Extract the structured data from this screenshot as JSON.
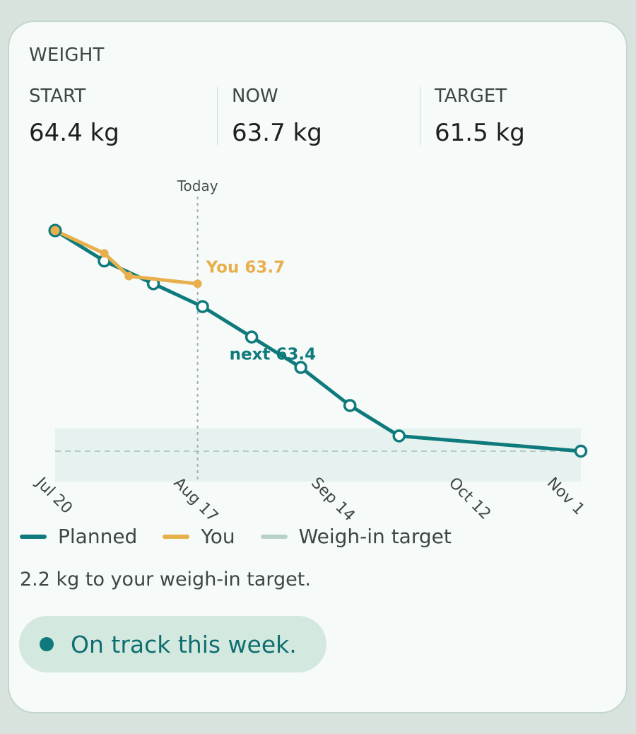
{
  "header": {
    "title": "WEIGHT"
  },
  "stats": [
    {
      "label": "START",
      "value": "64.4 kg"
    },
    {
      "label": "NOW",
      "value": "63.7 kg"
    },
    {
      "label": "TARGET",
      "value": "61.5 kg"
    }
  ],
  "legend": [
    {
      "label": "Planned",
      "color": "#0f7a7c"
    },
    {
      "label": "You",
      "color": "#e8b04d"
    },
    {
      "label": "Weigh-in target",
      "color": "#b9d2c8"
    }
  ],
  "summary": "2.2 kg to your weigh-in target.",
  "status": {
    "text": "On track this week."
  },
  "chart_data": {
    "type": "line",
    "x_ticks": [
      {
        "date": "2024-07-20",
        "label": "Jul 20"
      },
      {
        "date": "2024-08-17",
        "label": "Aug 17"
      },
      {
        "date": "2024-09-14",
        "label": "Sep 14"
      },
      {
        "date": "2024-10-12",
        "label": "Oct 12"
      },
      {
        "date": "2024-11-01",
        "label": "Nov 1"
      }
    ],
    "xlim": [
      "2024-07-20",
      "2024-11-04"
    ],
    "ylim": [
      61.0,
      64.7
    ],
    "today": {
      "date": "2024-08-18",
      "label": "Today"
    },
    "target_band": {
      "low": 61.1,
      "high": 61.8,
      "target": 61.5
    },
    "series": [
      {
        "name": "Planned",
        "color": "#0f7a7c",
        "points": [
          {
            "date": "2024-07-20",
            "value": 64.4
          },
          {
            "date": "2024-07-30",
            "value": 64.0
          },
          {
            "date": "2024-08-09",
            "value": 63.7
          },
          {
            "date": "2024-08-19",
            "value": 63.4
          },
          {
            "date": "2024-08-29",
            "value": 63.0
          },
          {
            "date": "2024-09-08",
            "value": 62.6
          },
          {
            "date": "2024-09-18",
            "value": 62.1
          },
          {
            "date": "2024-09-28",
            "value": 61.7
          },
          {
            "date": "2024-11-04",
            "value": 61.5
          }
        ]
      },
      {
        "name": "You",
        "color": "#e8b04d",
        "points": [
          {
            "date": "2024-07-20",
            "value": 64.4
          },
          {
            "date": "2024-07-30",
            "value": 64.1
          },
          {
            "date": "2024-08-04",
            "value": 63.8
          },
          {
            "date": "2024-08-18",
            "value": 63.7
          }
        ]
      }
    ],
    "annotations": [
      {
        "series": "You",
        "text": "You 63.7"
      },
      {
        "series": "Planned",
        "text": "next 63.4"
      }
    ]
  }
}
